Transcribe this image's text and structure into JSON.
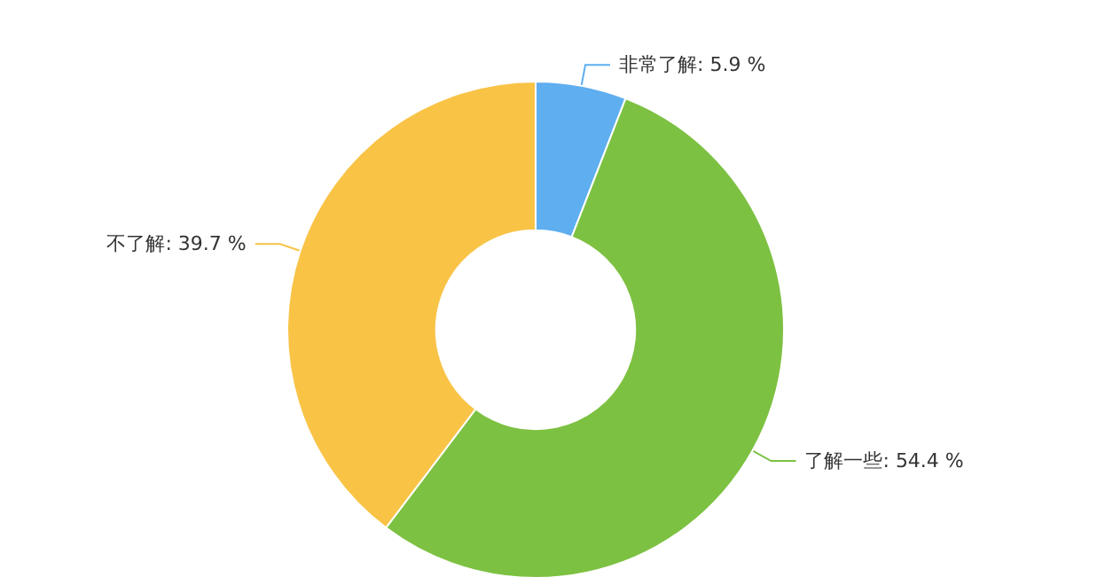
{
  "chart_data": {
    "type": "donut",
    "categories": [
      "非常了解",
      "了解一些",
      "不了解"
    ],
    "values": [
      5.9,
      54.4,
      39.7
    ],
    "value_labels": [
      "5.9 %",
      "54.4 %",
      "39.7 %"
    ],
    "colors": [
      "#5eaef0",
      "#7dc142",
      "#f9c346"
    ]
  }
}
